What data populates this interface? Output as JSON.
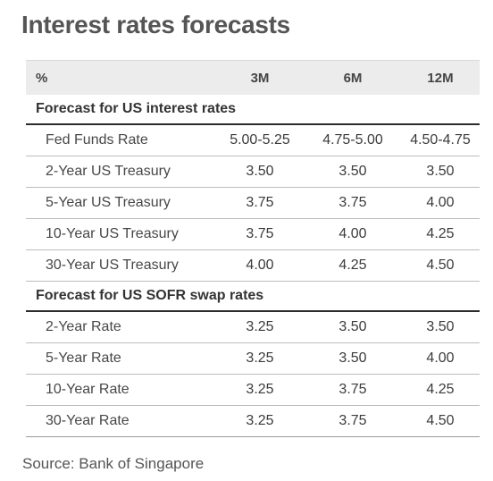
{
  "title": "Interest rates forecasts",
  "table": {
    "header": {
      "unit": "%",
      "columns": [
        "3M",
        "6M",
        "12M"
      ]
    },
    "sections": [
      {
        "label": "Forecast for US interest rates",
        "rows": [
          {
            "label": "Fed Funds Rate",
            "values": [
              "5.00-5.25",
              "4.75-5.00",
              "4.50-4.75"
            ]
          },
          {
            "label": "2-Year US Treasury",
            "values": [
              "3.50",
              "3.50",
              "3.50"
            ]
          },
          {
            "label": "5-Year US Treasury",
            "values": [
              "3.75",
              "3.75",
              "4.00"
            ]
          },
          {
            "label": "10-Year US Treasury",
            "values": [
              "3.75",
              "4.00",
              "4.25"
            ]
          },
          {
            "label": "30-Year US Treasury",
            "values": [
              "4.00",
              "4.25",
              "4.50"
            ]
          }
        ]
      },
      {
        "label": "Forecast for US SOFR swap rates",
        "rows": [
          {
            "label": "2-Year Rate",
            "values": [
              "3.25",
              "3.50",
              "3.50"
            ]
          },
          {
            "label": "5-Year Rate",
            "values": [
              "3.25",
              "3.50",
              "4.00"
            ]
          },
          {
            "label": "10-Year Rate",
            "values": [
              "3.25",
              "3.75",
              "4.25"
            ]
          },
          {
            "label": "30-Year Rate",
            "values": [
              "3.25",
              "3.75",
              "4.50"
            ]
          }
        ]
      }
    ]
  },
  "source": "Source: Bank of Singapore"
}
